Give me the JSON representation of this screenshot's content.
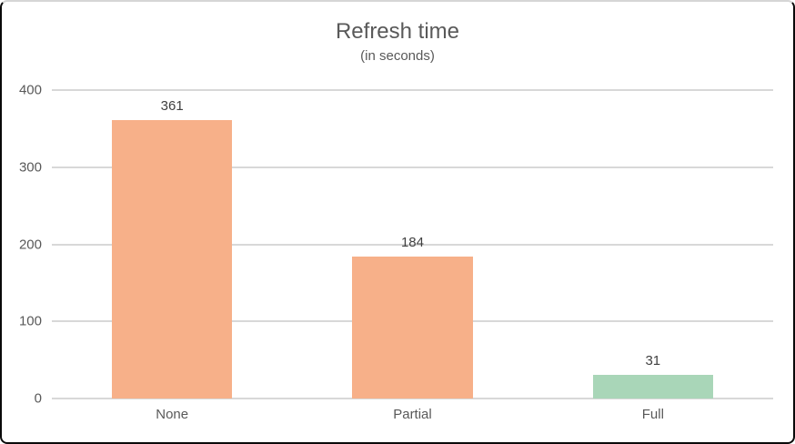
{
  "chart_data": {
    "type": "bar",
    "title": "Refresh time",
    "subtitle": "(in seconds)",
    "categories": [
      "None",
      "Partial",
      "Full"
    ],
    "values": [
      361,
      184,
      31
    ],
    "value_labels": [
      "361",
      "184",
      "31"
    ],
    "bar_colors": [
      "#F7B089",
      "#F7B089",
      "#A9D6B8"
    ],
    "xlabel": "",
    "ylabel": "",
    "ylim": [
      0,
      400
    ],
    "yticks": [
      0,
      100,
      200,
      300,
      400
    ],
    "grid": true,
    "legend": false
  },
  "style_colors": {
    "title_text": "#595959",
    "axis_text": "#595959",
    "value_label_text": "#404040",
    "gridline": "#D8D8D8",
    "frame_border": "#0A0A0A",
    "frame_top_border": "#D6D6D6",
    "background": "#FFFFFF"
  }
}
